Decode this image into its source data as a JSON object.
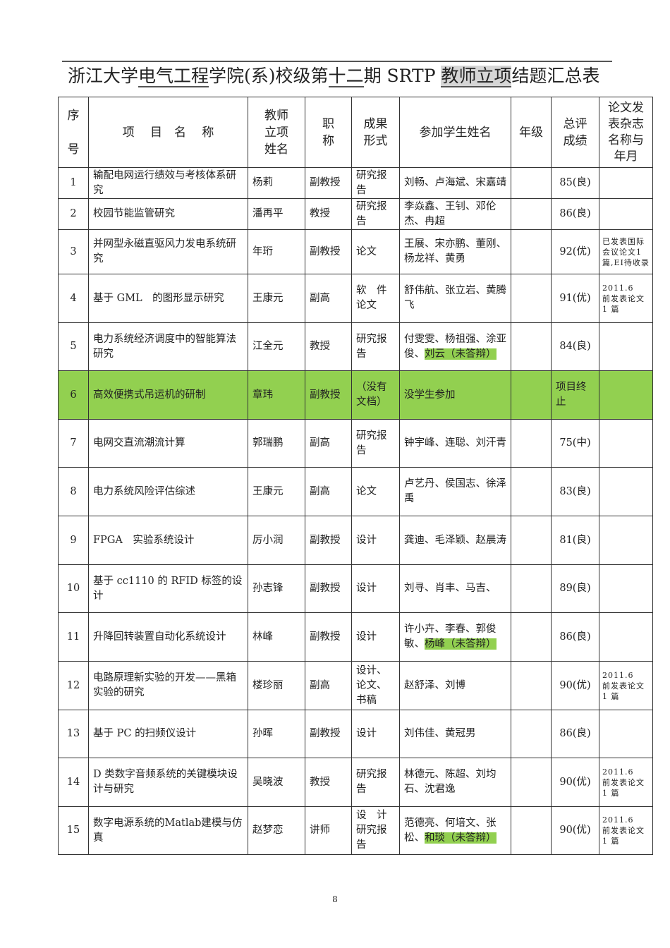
{
  "title": {
    "part1": "浙江大学",
    "part2": "电气工程",
    "part3": "学院(系)校级第",
    "part4": "十二",
    "part5": "期 SRTP ",
    "part6": "教师立项",
    "part7": "结题汇总表"
  },
  "headers": {
    "seq": "序\n\n号",
    "project": "项　 目　名　 称",
    "teacher": "教师\n立项\n姓名",
    "rank": "职\n称",
    "result": "成果\n形式",
    "students": "参加学生姓名",
    "grade": "年级",
    "score": "总评\n成绩",
    "journal": "论文发\n表杂志\n名称与\n年月"
  },
  "highlight_color": "#92d050",
  "rows": [
    {
      "seq": "1",
      "project": "输配电网运行绩效与考核体系研究",
      "teacher": "杨莉",
      "rank": "副教授",
      "result": "研究报告",
      "students": "刘畅、卢海斌、宋嘉靖",
      "students_hl": "",
      "grade": "",
      "score": "85(良)",
      "journal": ""
    },
    {
      "seq": "2",
      "project": "校园节能监管研究",
      "teacher": "潘再平",
      "rank": "教授",
      "result": "研究报告",
      "students": "李焱鑫、王钊、邓伦杰、冉超",
      "students_hl": "",
      "grade": "",
      "score": "86(良)",
      "journal": ""
    },
    {
      "seq": "3",
      "project": "并网型永磁直驱风力发电系统研究",
      "teacher": "年珩",
      "rank": "副教授",
      "result": "论文",
      "students": "王展、宋亦鹏、董刚、杨龙祥、黄勇",
      "students_hl": "",
      "grade": "",
      "score": "92(优)",
      "journal": "已发表国际会议论文1篇,EI待收录"
    },
    {
      "seq": "4",
      "project": "基于 GML　的图形显示研究",
      "teacher": "王康元",
      "rank": "副高",
      "result": "软　件论文",
      "students": "舒伟航、张立岩、黄腾飞",
      "students_hl": "",
      "grade": "",
      "score": "91(优)",
      "journal": "2011.6　前发表论文 1 篇"
    },
    {
      "seq": "5",
      "project": "电力系统经济调度中的智能算法研究",
      "teacher": "江全元",
      "rank": "教授",
      "result": "研究报告",
      "students": "付雯雯、杨祖强、涂亚俊、",
      "students_hl": "刘云（未答辩）",
      "grade": "",
      "score": "84(良)",
      "journal": ""
    },
    {
      "seq": "6",
      "project": "高效便携式吊运机的研制",
      "teacher": "章玮",
      "rank": "副教授",
      "result": "（没有文档）",
      "students": "没学生参加",
      "students_hl": "",
      "grade": "",
      "score": "项目终止",
      "journal": "",
      "terminated": true
    },
    {
      "seq": "7",
      "project": "电网交直流潮流计算",
      "teacher": "郭瑞鹏",
      "rank": "副高",
      "result": "研究报告",
      "students": "钟宇峰、连聪、刘汗青",
      "students_hl": "",
      "grade": "",
      "score": "75(中)",
      "journal": ""
    },
    {
      "seq": "8",
      "project": "电力系统风险评估综述",
      "teacher": "王康元",
      "rank": "副高",
      "result": "论文",
      "students": "卢艺丹、侯国志、徐泽禹",
      "students_hl": "",
      "grade": "",
      "score": "83(良)",
      "journal": ""
    },
    {
      "seq": "9",
      "project": "FPGA　实验系统设计",
      "teacher": "厉小润",
      "rank": "副教授",
      "result": "设计",
      "students": "龚迪、毛泽颖、赵晨涛",
      "students_hl": "",
      "grade": "",
      "score": "81(良)",
      "journal": ""
    },
    {
      "seq": "10",
      "project": "基于 cc1110 的 RFID 标签的设计",
      "teacher": "孙志锋",
      "rank": "副教授",
      "result": "设计",
      "students": "刘寻、肖丰、马吉、",
      "students_hl": "",
      "grade": "",
      "score": "89(良)",
      "journal": ""
    },
    {
      "seq": "11",
      "project": "升降回转装置自动化系统设计",
      "teacher": "林峰",
      "rank": "副教授",
      "result": "设计",
      "students": "许小卉、李春、郭俊敏、",
      "students_hl": "杨峰（未答辩）",
      "grade": "",
      "score": "86(良)",
      "journal": ""
    },
    {
      "seq": "12",
      "project": "电路原理新实验的开发——黑箱实验的研究",
      "teacher": "楼珍丽",
      "rank": "副高",
      "result": "设计、论文、书稿",
      "students": "赵舒泽、刘博",
      "students_hl": "",
      "grade": "",
      "score": "90(优)",
      "journal": "2011.6　前发表论文 1 篇"
    },
    {
      "seq": "13",
      "project": "基于 PC 的扫频仪设计",
      "teacher": "孙晖",
      "rank": "副教授",
      "result": "设计",
      "students": "刘伟佳、黄冠男",
      "students_hl": "",
      "grade": "",
      "score": "86(良)",
      "journal": ""
    },
    {
      "seq": "14",
      "project": "D 类数字音频系统的关键模块设计与研究",
      "teacher": "吴晓波",
      "rank": "教授",
      "result": "研究报告",
      "students": "林德元、陈超、刘均石、沈君逸",
      "students_hl": "",
      "grade": "",
      "score": "90(优)",
      "journal": "2011.6　前发表论文 1 篇"
    },
    {
      "seq": "15",
      "project": "数字电源系统的Matlab建模与仿真",
      "teacher": "赵梦恋",
      "rank": "讲师",
      "result": "设　计研究报告",
      "students": "范德亮、何培文、张松、",
      "students_hl": "和琰（未答辩）",
      "grade": "",
      "score": "90(优)",
      "journal": "2011.6　前发表论文 1 篇"
    }
  ],
  "page_number": "8"
}
